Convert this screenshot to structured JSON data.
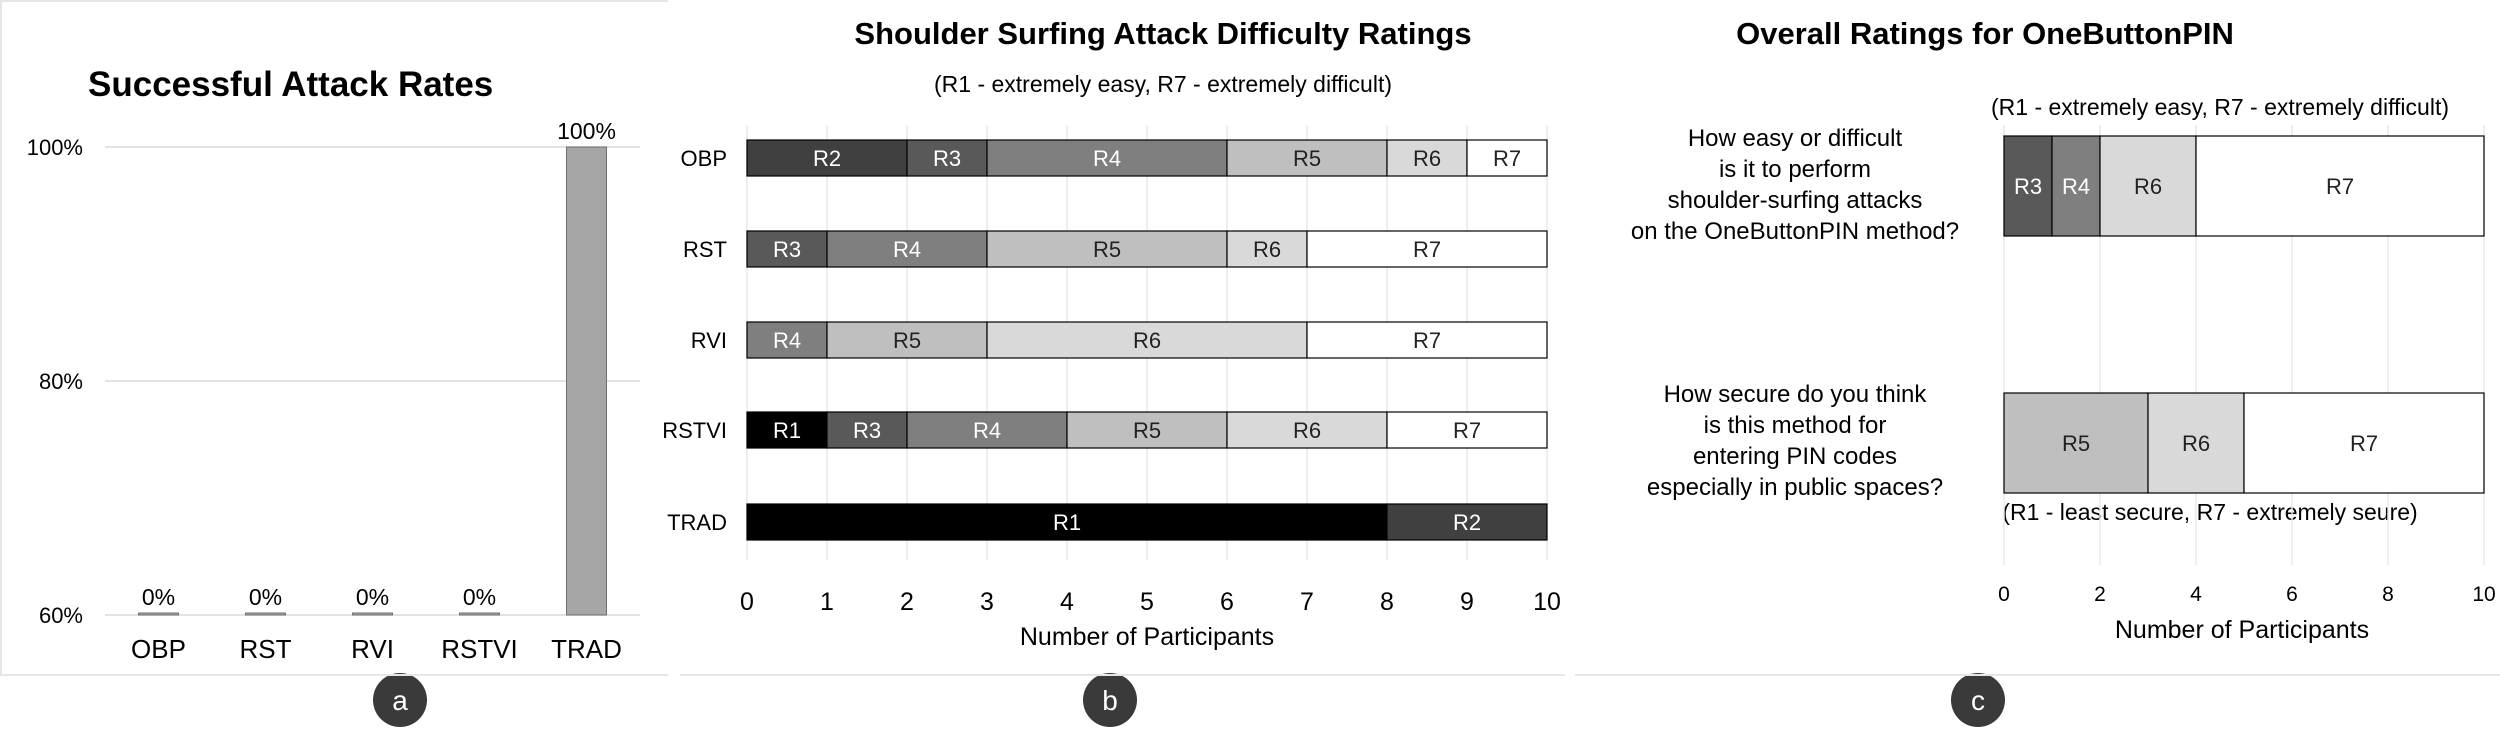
{
  "panels": {
    "a": {
      "badge": "a"
    },
    "b": {
      "badge": "b"
    },
    "c": {
      "badge": "c"
    }
  },
  "colors": {
    "R1": "#000000",
    "R2": "#404040",
    "R3": "#595959",
    "R4": "#7f7f7f",
    "R5": "#bfbfbf",
    "R6": "#d9d9d9",
    "R7": "#ffffff",
    "bar": "#a6a6a6",
    "grid": "#d9d9d9",
    "badge": "#3a3a3a"
  },
  "chart_data": [
    {
      "type": "bar",
      "title": "Successful Attack Rates",
      "categories": [
        "OBP",
        "RST",
        "RVI",
        "RSTVI",
        "TRAD"
      ],
      "values": [
        0,
        0,
        0,
        0,
        100
      ],
      "value_labels": [
        "0%",
        "0%",
        "0%",
        "0%",
        "100%"
      ],
      "ylim": [
        60,
        100
      ],
      "yticks": [
        60,
        80,
        100
      ],
      "ytick_labels": [
        "60%",
        "80%",
        "100%"
      ],
      "grid": true
    },
    {
      "type": "bar",
      "orientation": "horizontal-stacked",
      "title": "Shoulder Surfing Attack Difficulty Ratings",
      "subtitle": "(R1 - extremely easy,  R7 - extremely difficult)",
      "xlabel": "Number of Participants",
      "xlim": [
        0,
        10
      ],
      "xticks": [
        0,
        1,
        2,
        3,
        4,
        5,
        6,
        7,
        8,
        9,
        10
      ],
      "grid": true,
      "categories": [
        "OBP",
        "RST",
        "RVI",
        "RSTVI",
        "TRAD"
      ],
      "series": [
        {
          "name": "R1",
          "values": [
            0,
            0,
            0,
            1,
            8
          ]
        },
        {
          "name": "R2",
          "values": [
            2,
            0,
            0,
            0,
            2
          ]
        },
        {
          "name": "R3",
          "values": [
            1,
            1,
            0,
            1,
            0
          ]
        },
        {
          "name": "R4",
          "values": [
            3,
            2,
            1,
            2,
            0
          ]
        },
        {
          "name": "R5",
          "values": [
            2,
            3,
            2,
            2,
            0
          ]
        },
        {
          "name": "R6",
          "values": [
            1,
            1,
            4,
            2,
            0
          ]
        },
        {
          "name": "R7",
          "values": [
            1,
            3,
            3,
            2,
            0
          ]
        }
      ]
    },
    {
      "type": "bar",
      "orientation": "horizontal-stacked",
      "title": "Overall Ratings for OneButtonPIN",
      "xlabel": "Number of Participants",
      "xlim": [
        0,
        10
      ],
      "xticks": [
        0,
        2,
        4,
        6,
        8,
        10
      ],
      "grid": true,
      "questions": [
        {
          "lines": [
            "How easy or difficult",
            "is it to perform",
            "shoulder-surfing attacks",
            "on the OneButtonPIN method?"
          ],
          "scale_note": "(R1 - extremely easy, R7 - extremely difficult)",
          "segments": [
            {
              "name": "R3",
              "value": 1
            },
            {
              "name": "R4",
              "value": 1
            },
            {
              "name": "R6",
              "value": 2
            },
            {
              "name": "R7",
              "value": 6
            }
          ]
        },
        {
          "lines": [
            "How secure do you think",
            "is this method for",
            "entering PIN codes",
            "especially in public spaces?"
          ],
          "scale_note": "(R1 - least secure, R7 - extremely seure)",
          "segments": [
            {
              "name": "R5",
              "value": 3
            },
            {
              "name": "R6",
              "value": 2
            },
            {
              "name": "R7",
              "value": 5
            }
          ]
        }
      ]
    }
  ]
}
